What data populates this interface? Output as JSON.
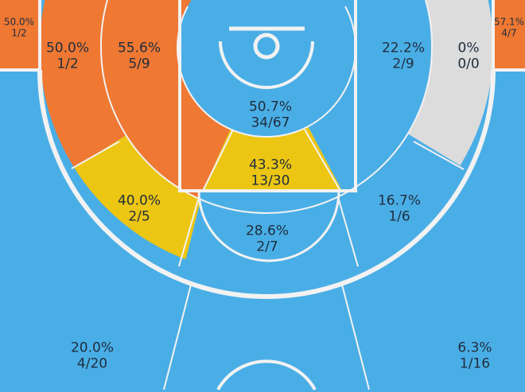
{
  "colors": {
    "hot": "#ef7833",
    "warm": "#ecc613",
    "cold": "#4aaee6",
    "none": "#dcdcdc",
    "line": "#f2f2f2"
  },
  "zones": [
    {
      "id": "left-corner-3",
      "pct": "50.0%",
      "made": "1/2",
      "color": "hot"
    },
    {
      "id": "left-wing-3",
      "pct": "50.0%",
      "made": "1/2",
      "color": "hot"
    },
    {
      "id": "left-midrange",
      "pct": "55.6%",
      "made": "5/9",
      "color": "hot"
    },
    {
      "id": "restricted-area",
      "pct": "50.7%",
      "made": "34/67",
      "color": "cold"
    },
    {
      "id": "right-midrange",
      "pct": "22.2%",
      "made": "2/9",
      "color": "cold"
    },
    {
      "id": "right-wing-3",
      "pct": "0%",
      "made": "0/0",
      "color": "none"
    },
    {
      "id": "right-corner-3",
      "pct": "57.1%",
      "made": "4/7",
      "color": "hot"
    },
    {
      "id": "paint-non-ra",
      "pct": "43.3%",
      "made": "13/30",
      "color": "warm"
    },
    {
      "id": "left-baseline-mid",
      "pct": "40.0%",
      "made": "2/5",
      "color": "warm"
    },
    {
      "id": "right-baseline-mid",
      "pct": "16.7%",
      "made": "1/6",
      "color": "cold"
    },
    {
      "id": "free-throw-mid",
      "pct": "28.6%",
      "made": "2/7",
      "color": "cold"
    },
    {
      "id": "left-top-3",
      "pct": "20.0%",
      "made": "4/20",
      "color": "cold"
    },
    {
      "id": "right-top-3",
      "pct": "6.3%",
      "made": "1/16",
      "color": "cold"
    }
  ]
}
